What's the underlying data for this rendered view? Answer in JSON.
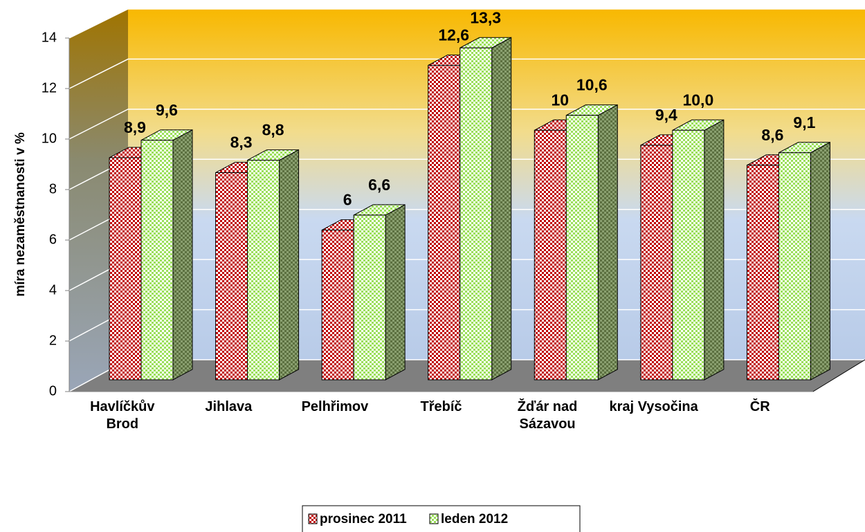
{
  "chart_data": {
    "type": "bar3d",
    "categories": [
      "Havlíčkův Brod",
      "Jihlava",
      "Pelhřimov",
      "Třebíč",
      "Žďár nad Sázavou",
      "kraj Vysočina",
      "ČR"
    ],
    "series": [
      {
        "name": "prosinec 2011",
        "color": "#c00000",
        "values": [
          8.9,
          8.3,
          6,
          12.6,
          10,
          9.4,
          8.6
        ],
        "value_labels": [
          "8,9",
          "8,3",
          "6",
          "12,6",
          "10",
          "9,4",
          "8,6"
        ]
      },
      {
        "name": "leden 2012",
        "color": "#9be05a",
        "values": [
          9.6,
          8.8,
          6.6,
          13.3,
          10.6,
          10.0,
          9.1
        ],
        "value_labels": [
          "9,6",
          "8,8",
          "6,6",
          "13,3",
          "10,6",
          "10,0",
          "9,1"
        ]
      }
    ],
    "y_label": "míra nezaměstnanosti v %",
    "ylim": [
      0,
      14
    ],
    "yticks": [
      0,
      2,
      4,
      6,
      8,
      10,
      12,
      14
    ],
    "grid": true,
    "legend": "bottom"
  }
}
